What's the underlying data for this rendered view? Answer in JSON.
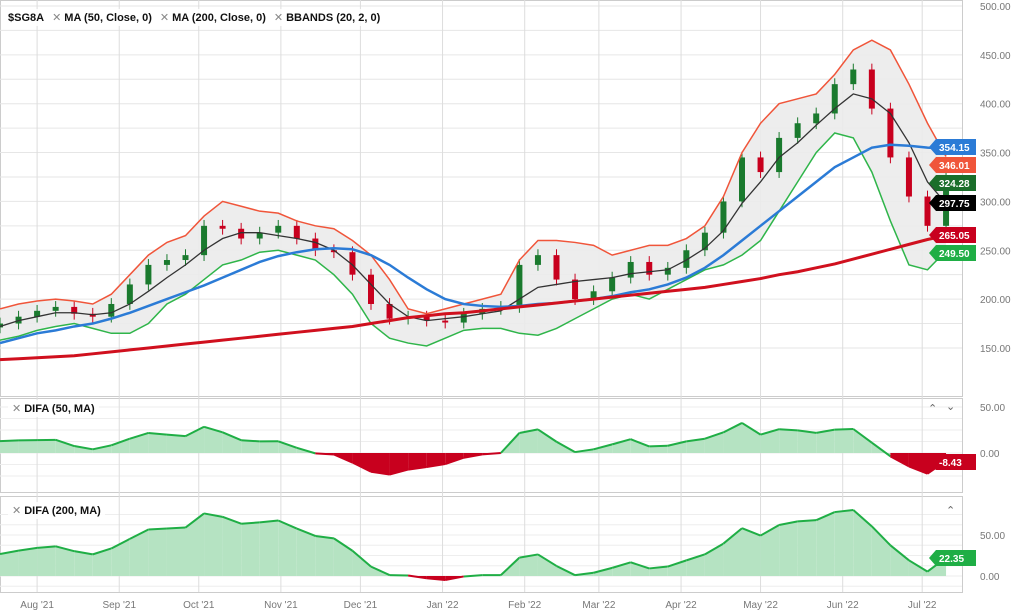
{
  "legend": {
    "symbol": "$SG8A",
    "indicators": [
      "MA (50, Close, 0)",
      "MA (200, Close, 0)",
      "BBANDS (20, 2, 0)"
    ],
    "remove_icon": "x-icon"
  },
  "panels": {
    "difa50_title": "DIFA (50, MA)",
    "difa200_title": "DIFA (200, MA)",
    "collapse_icon": "chevron-up-icon",
    "expand_icon": "chevron-down-icon"
  },
  "colors": {
    "up": "#1a7a2e",
    "down": "#c8001e",
    "ma50": "#2b7bd6",
    "ma200": "#d0101e",
    "bb_upper": "#f0553a",
    "bb_lower": "#2fb54a",
    "bb_mid": "#333333",
    "difa_pos_fill": "#b5e3c2",
    "difa_pos_line": "#1fae45",
    "difa_neg_fill": "#c8001e"
  },
  "chart_data": [
    {
      "type": "candlestick",
      "title": "$SG8A",
      "y_ticks": [
        "150.00",
        "200.00",
        "250.00",
        "300.00",
        "350.00",
        "400.00",
        "450.00",
        "500.00"
      ],
      "ylim": [
        150,
        500
      ],
      "x_ticks": [
        {
          "label": "Aug '21",
          "date": "2021-08-01"
        },
        {
          "label": "Sep '21",
          "date": "2021-09-01"
        },
        {
          "label": "Oct '21",
          "date": "2021-10-01"
        },
        {
          "label": "Nov '21",
          "date": "2021-11-01"
        },
        {
          "label": "Dec '21",
          "date": "2021-12-01"
        },
        {
          "label": "Jan '22",
          "date": "2022-01-01"
        },
        {
          "label": "Feb '22",
          "date": "2022-02-01"
        },
        {
          "label": "Mar '22",
          "date": "2022-03-01"
        },
        {
          "label": "Apr '22",
          "date": "2022-04-01"
        },
        {
          "label": "May '22",
          "date": "2022-05-01"
        },
        {
          "label": "Jun '22",
          "date": "2022-06-01"
        },
        {
          "label": "Jul '22",
          "date": "2022-07-01"
        }
      ],
      "grid": true,
      "start_date": "2021-07-18",
      "step_days": 7,
      "close": [
        175,
        182,
        188,
        192,
        185,
        182,
        195,
        215,
        235,
        240,
        245,
        275,
        272,
        262,
        268,
        275,
        262,
        250,
        248,
        225,
        195,
        180,
        182,
        178,
        176,
        185,
        190,
        192,
        235,
        245,
        220,
        200,
        208,
        222,
        238,
        225,
        232,
        250,
        268,
        300,
        345,
        330,
        365,
        380,
        390,
        420,
        435,
        395,
        345,
        305,
        275,
        324.28
      ],
      "series": [
        {
          "name": "MA (50, Close, 0)",
          "values": [
            155,
            160,
            165,
            168,
            172,
            175,
            180,
            186,
            193,
            200,
            207,
            214,
            222,
            230,
            238,
            244,
            248,
            251,
            252,
            251,
            245,
            235,
            222,
            210,
            200,
            195,
            193,
            192,
            193,
            195,
            196,
            198,
            200,
            203,
            207,
            210,
            215,
            222,
            232,
            245,
            260,
            275,
            290,
            305,
            320,
            335,
            345,
            355,
            358,
            357,
            355,
            354.15
          ]
        },
        {
          "name": "MA (200, Close, 0)",
          "values": [
            138,
            139,
            140,
            141,
            142,
            144,
            146,
            148,
            150,
            152,
            154,
            156,
            158,
            160,
            162,
            164,
            166,
            168,
            170,
            172,
            175,
            178,
            181,
            183,
            185,
            186,
            188,
            190,
            192,
            194,
            196,
            198,
            200,
            202,
            204,
            206,
            208,
            210,
            212,
            215,
            218,
            221,
            225,
            228,
            232,
            236,
            241,
            246,
            251,
            256,
            261,
            265.05
          ]
        },
        {
          "name": "BBANDS upper",
          "values": [
            190,
            195,
            198,
            200,
            198,
            195,
            205,
            225,
            245,
            258,
            265,
            285,
            300,
            295,
            290,
            288,
            280,
            275,
            272,
            260,
            245,
            220,
            190,
            185,
            190,
            195,
            200,
            205,
            240,
            260,
            260,
            258,
            255,
            245,
            250,
            255,
            255,
            262,
            275,
            305,
            350,
            380,
            400,
            405,
            410,
            430,
            455,
            465,
            455,
            420,
            380,
            346.01
          ]
        },
        {
          "name": "BBANDS middle",
          "values": [
            172,
            178,
            182,
            186,
            186,
            184,
            186,
            195,
            208,
            222,
            235,
            250,
            262,
            268,
            268,
            265,
            262,
            258,
            250,
            235,
            215,
            195,
            182,
            178,
            180,
            182,
            185,
            188,
            200,
            212,
            215,
            218,
            220,
            222,
            226,
            228,
            230,
            240,
            252,
            270,
            298,
            320,
            345,
            360,
            378,
            395,
            410,
            405,
            390,
            360,
            320,
            297.75
          ]
        },
        {
          "name": "BBANDS lower",
          "values": [
            158,
            162,
            168,
            172,
            175,
            170,
            165,
            165,
            175,
            195,
            205,
            220,
            235,
            240,
            248,
            250,
            245,
            240,
            225,
            205,
            175,
            160,
            155,
            152,
            160,
            168,
            170,
            170,
            165,
            163,
            170,
            180,
            190,
            200,
            205,
            200,
            210,
            220,
            230,
            235,
            245,
            260,
            290,
            320,
            350,
            370,
            365,
            330,
            280,
            235,
            230,
            249.5
          ]
        }
      ],
      "last_value_tags": [
        {
          "value": "354.15",
          "color": "#2b7bd6"
        },
        {
          "value": "346.01",
          "color": "#f0553a"
        },
        {
          "value": "324.28",
          "color": "#1a6e2a"
        },
        {
          "value": "297.75",
          "color": "#000000"
        },
        {
          "value": "265.05",
          "color": "#c8001e"
        },
        {
          "value": "249.50",
          "color": "#1fae45"
        }
      ]
    },
    {
      "type": "area",
      "title": "DIFA (50, MA)",
      "y_ticks": [
        "0.00",
        "50.00"
      ],
      "last_value": "-8.43",
      "last_color": "#c8001e"
    },
    {
      "type": "area",
      "title": "DIFA (200, MA)",
      "y_ticks": [
        "0.00",
        "50.00"
      ],
      "last_value": "22.35",
      "last_color": "#1fae45"
    }
  ]
}
